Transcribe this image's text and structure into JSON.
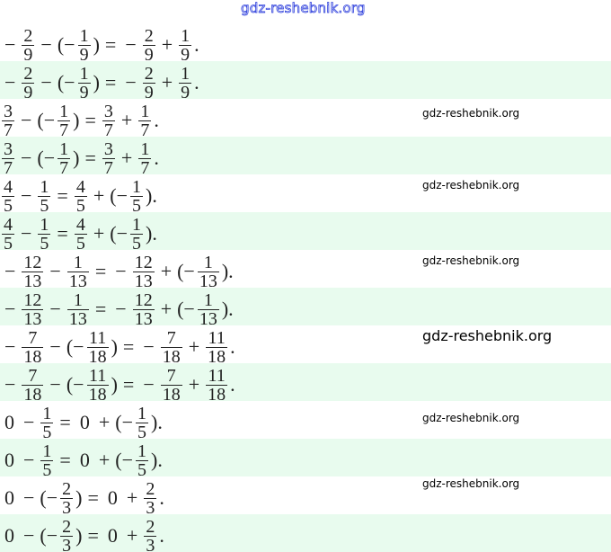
{
  "header": {
    "watermark": "gdz-reshebnik.org"
  },
  "equations": [
    [
      {
        "t": "op",
        "v": "−"
      },
      {
        "t": "frac",
        "n": "2",
        "d": "9"
      },
      {
        "t": "op",
        "v": "−"
      },
      {
        "t": "op",
        "v": "(−"
      },
      {
        "t": "frac",
        "n": "1",
        "d": "9"
      },
      {
        "t": "op",
        "v": ")"
      },
      {
        "t": "op",
        "v": "="
      },
      {
        "t": "op",
        "v": "−"
      },
      {
        "t": "frac",
        "n": "2",
        "d": "9"
      },
      {
        "t": "op",
        "v": "+"
      },
      {
        "t": "frac",
        "n": "1",
        "d": "9"
      },
      {
        "t": "op",
        "v": "."
      }
    ],
    [
      {
        "t": "frac",
        "n": "3",
        "d": "7"
      },
      {
        "t": "op",
        "v": "−"
      },
      {
        "t": "op",
        "v": "(−"
      },
      {
        "t": "frac",
        "n": "1",
        "d": "7"
      },
      {
        "t": "op",
        "v": ")"
      },
      {
        "t": "op",
        "v": "="
      },
      {
        "t": "frac",
        "n": "3",
        "d": "7"
      },
      {
        "t": "op",
        "v": "+"
      },
      {
        "t": "frac",
        "n": "1",
        "d": "7"
      },
      {
        "t": "op",
        "v": "."
      }
    ],
    [
      {
        "t": "frac",
        "n": "4",
        "d": "5"
      },
      {
        "t": "op",
        "v": "−"
      },
      {
        "t": "frac",
        "n": "1",
        "d": "5"
      },
      {
        "t": "op",
        "v": "="
      },
      {
        "t": "frac",
        "n": "4",
        "d": "5"
      },
      {
        "t": "op",
        "v": "+"
      },
      {
        "t": "op",
        "v": "(−"
      },
      {
        "t": "frac",
        "n": "1",
        "d": "5"
      },
      {
        "t": "op",
        "v": ")."
      }
    ],
    [
      {
        "t": "op",
        "v": "−"
      },
      {
        "t": "frac",
        "n": "12",
        "d": "13"
      },
      {
        "t": "op",
        "v": "−"
      },
      {
        "t": "frac",
        "n": "1",
        "d": "13"
      },
      {
        "t": "op",
        "v": "="
      },
      {
        "t": "op",
        "v": "−"
      },
      {
        "t": "frac",
        "n": "12",
        "d": "13"
      },
      {
        "t": "op",
        "v": "+"
      },
      {
        "t": "op",
        "v": "(−"
      },
      {
        "t": "frac",
        "n": "1",
        "d": "13"
      },
      {
        "t": "op",
        "v": ")."
      }
    ],
    [
      {
        "t": "op",
        "v": "−"
      },
      {
        "t": "frac",
        "n": "7",
        "d": "18"
      },
      {
        "t": "op",
        "v": "−"
      },
      {
        "t": "op",
        "v": "(−"
      },
      {
        "t": "frac",
        "n": "11",
        "d": "18"
      },
      {
        "t": "op",
        "v": ")"
      },
      {
        "t": "op",
        "v": "="
      },
      {
        "t": "op",
        "v": "−"
      },
      {
        "t": "frac",
        "n": "7",
        "d": "18"
      },
      {
        "t": "op",
        "v": "+"
      },
      {
        "t": "frac",
        "n": "11",
        "d": "18"
      },
      {
        "t": "op",
        "v": "."
      }
    ],
    [
      {
        "t": "op",
        "v": "0"
      },
      {
        "t": "op",
        "v": "−"
      },
      {
        "t": "frac",
        "n": "1",
        "d": "5"
      },
      {
        "t": "op",
        "v": "="
      },
      {
        "t": "op",
        "v": "0"
      },
      {
        "t": "op",
        "v": "+"
      },
      {
        "t": "op",
        "v": "(−"
      },
      {
        "t": "frac",
        "n": "1",
        "d": "5"
      },
      {
        "t": "op",
        "v": ")."
      }
    ],
    [
      {
        "t": "op",
        "v": "0"
      },
      {
        "t": "op",
        "v": "−"
      },
      {
        "t": "op",
        "v": "(−"
      },
      {
        "t": "frac",
        "n": "2",
        "d": "3"
      },
      {
        "t": "op",
        "v": ")"
      },
      {
        "t": "op",
        "v": "="
      },
      {
        "t": "op",
        "v": "0"
      },
      {
        "t": "op",
        "v": "+"
      },
      {
        "t": "frac",
        "n": "2",
        "d": "3"
      },
      {
        "t": "op",
        "v": "."
      }
    ]
  ],
  "watermarks": [
    "gdz-reshebnik.org",
    "gdz-reshebnik.org",
    "gdz-reshebnik.org",
    "gdz-reshebnik.org",
    "gdz-reshebnik.org",
    "gdz-reshebnik.org"
  ],
  "colors": {
    "row_alt": "#e8fbee",
    "header_watermark": "#3344dd"
  }
}
